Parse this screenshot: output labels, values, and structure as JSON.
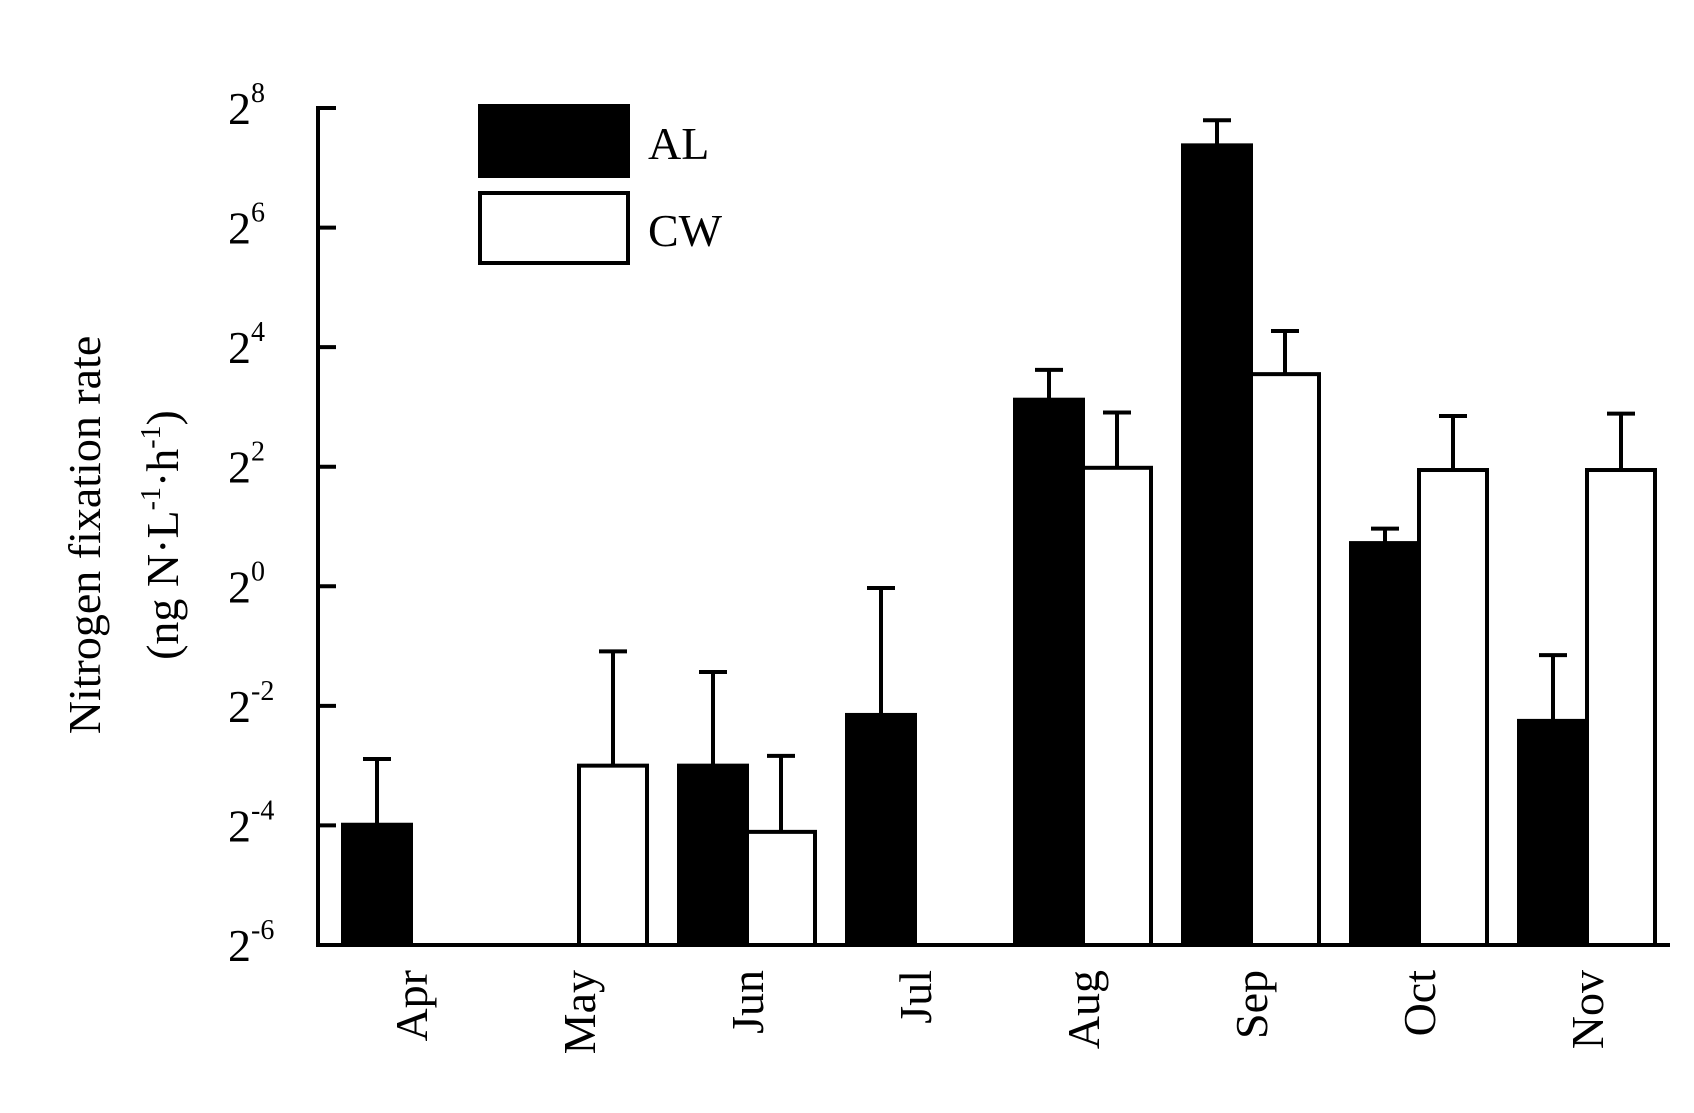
{
  "chart_data": {
    "type": "bar",
    "categories": [
      "Apr",
      "May",
      "Jun",
      "Jul",
      "Aug",
      "Sep",
      "Oct",
      "Nov"
    ],
    "series": [
      {
        "name": "AL",
        "color": "#000000",
        "values": [
          0.063,
          null,
          0.125,
          0.225,
          8.7,
          166,
          1.65,
          0.21
        ],
        "error_upper": [
          0.135,
          null,
          0.37,
          0.98,
          12.3,
          222,
          1.95,
          0.45
        ]
      },
      {
        "name": "CW",
        "color": "#ffffff",
        "values": [
          null,
          0.125,
          0.058,
          null,
          3.95,
          11.7,
          3.85,
          3.85
        ],
        "error_upper": [
          null,
          0.47,
          0.14,
          null,
          7.5,
          19.3,
          7.2,
          7.4
        ]
      }
    ],
    "ylabel_line1": "Nitrogen fixation rate",
    "ylabel_line2": {
      "open": "(ng N·L",
      "exp1": "-1",
      "mid": "·h",
      "exp2": "-1",
      "close": ")"
    },
    "xlabel": "",
    "y_scale": "log2",
    "ylim": [
      0.015625,
      256
    ],
    "y_ticks": [
      {
        "base": "2",
        "exp": "8",
        "value": 256
      },
      {
        "base": "2",
        "exp": "6",
        "value": 64
      },
      {
        "base": "2",
        "exp": "4",
        "value": 16
      },
      {
        "base": "2",
        "exp": "2",
        "value": 4
      },
      {
        "base": "2",
        "exp": "0",
        "value": 1
      },
      {
        "base": "2",
        "exp": "-2",
        "value": 0.25
      },
      {
        "base": "2",
        "exp": "-4",
        "value": 0.0625
      },
      {
        "base": "2",
        "exp": "-6",
        "value": 0.015625
      }
    ],
    "legend": {
      "position": "top-left",
      "entries": [
        "AL",
        "CW"
      ]
    },
    "grid": false,
    "x_tick_label_rotation": "vertical"
  }
}
